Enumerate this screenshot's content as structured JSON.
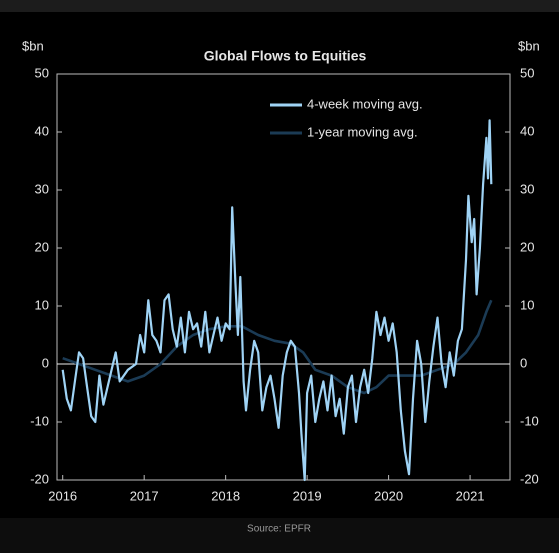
{
  "chart_data": {
    "type": "line",
    "title": "Global Flows to Equities",
    "ylabel": "$bn",
    "y2label": "$bn",
    "source": "Source: EPFR",
    "xlim": [
      2015.93,
      2021.49
    ],
    "xticks": [
      2016,
      2017,
      2018,
      2019,
      2020,
      2021
    ],
    "ylim": [
      -20,
      50
    ],
    "yticks": [
      -20,
      -10,
      0,
      10,
      20,
      30,
      40,
      50
    ],
    "y2lim": [
      -20,
      50
    ],
    "y2ticks": [
      -20,
      -10,
      0,
      10,
      20,
      30,
      40,
      50
    ],
    "legend": "top-right",
    "series": [
      {
        "name": "4-week moving avg.",
        "color": "#9fd3f5",
        "x": [
          2016.0,
          2016.05,
          2016.1,
          2016.15,
          2016.2,
          2016.25,
          2016.3,
          2016.35,
          2016.4,
          2016.45,
          2016.5,
          2016.55,
          2016.6,
          2016.65,
          2016.7,
          2016.8,
          2016.9,
          2016.95,
          2017.0,
          2017.05,
          2017.1,
          2017.15,
          2017.2,
          2017.25,
          2017.3,
          2017.35,
          2017.4,
          2017.45,
          2017.5,
          2017.55,
          2017.6,
          2017.65,
          2017.7,
          2017.75,
          2017.8,
          2017.85,
          2017.9,
          2017.95,
          2018.0,
          2018.05,
          2018.08,
          2018.12,
          2018.15,
          2018.18,
          2018.22,
          2018.25,
          2018.3,
          2018.35,
          2018.4,
          2018.45,
          2018.5,
          2018.55,
          2018.6,
          2018.65,
          2018.7,
          2018.75,
          2018.8,
          2018.85,
          2018.9,
          2018.93,
          2018.97,
          2019.0,
          2019.05,
          2019.1,
          2019.15,
          2019.2,
          2019.25,
          2019.3,
          2019.35,
          2019.4,
          2019.45,
          2019.5,
          2019.55,
          2019.6,
          2019.65,
          2019.7,
          2019.75,
          2019.8,
          2019.85,
          2019.9,
          2019.95,
          2020.0,
          2020.05,
          2020.1,
          2020.15,
          2020.2,
          2020.25,
          2020.3,
          2020.35,
          2020.4,
          2020.45,
          2020.5,
          2020.55,
          2020.6,
          2020.65,
          2020.7,
          2020.75,
          2020.8,
          2020.85,
          2020.9,
          2020.95,
          2020.98,
          2021.02,
          2021.05,
          2021.08,
          2021.12,
          2021.16,
          2021.2,
          2021.22,
          2021.24,
          2021.26
        ],
        "values": [
          -1,
          -6,
          -8,
          -3,
          2,
          1,
          -4,
          -9,
          -10,
          -2,
          -7,
          -4,
          -1,
          2,
          -3,
          -1,
          0,
          5,
          2,
          11,
          5,
          4,
          2,
          11,
          12,
          6,
          3,
          8,
          2,
          9,
          6,
          7,
          3,
          9,
          2,
          5,
          8,
          4,
          7,
          6,
          27,
          14,
          5,
          15,
          -3,
          -8,
          -1,
          4,
          2,
          -8,
          -4,
          -2,
          -6,
          -11,
          -2,
          2,
          4,
          3,
          -5,
          -12,
          -20,
          -5,
          -2,
          -10,
          -6,
          -3,
          -8,
          -2,
          -9,
          -6,
          -12,
          -4,
          -2,
          -10,
          -4,
          -1,
          -5,
          1,
          9,
          5,
          8,
          4,
          7,
          2,
          -8,
          -15,
          -19,
          -6,
          4,
          0,
          -10,
          -3,
          3,
          8,
          0,
          -4,
          2,
          -2,
          4,
          6,
          18,
          29,
          21,
          25,
          12,
          20,
          31,
          39,
          32,
          42,
          31
        ]
      },
      {
        "name": "1-year moving avg.",
        "color": "#1b3b55",
        "x": [
          2016.0,
          2016.2,
          2016.4,
          2016.6,
          2016.8,
          2017.0,
          2017.2,
          2017.4,
          2017.6,
          2017.8,
          2018.0,
          2018.2,
          2018.4,
          2018.6,
          2018.8,
          2018.95,
          2019.1,
          2019.3,
          2019.5,
          2019.7,
          2019.85,
          2020.0,
          2020.2,
          2020.4,
          2020.6,
          2020.8,
          2020.95,
          2021.1,
          2021.2,
          2021.26
        ],
        "values": [
          1,
          0,
          -1,
          -2,
          -3,
          -2,
          0,
          3,
          5,
          6,
          6.5,
          6.5,
          5,
          4,
          3.5,
          2,
          -1,
          -2,
          -4,
          -5,
          -4,
          -2,
          -2,
          -2,
          -1,
          0,
          2,
          5,
          9,
          11
        ]
      }
    ]
  }
}
